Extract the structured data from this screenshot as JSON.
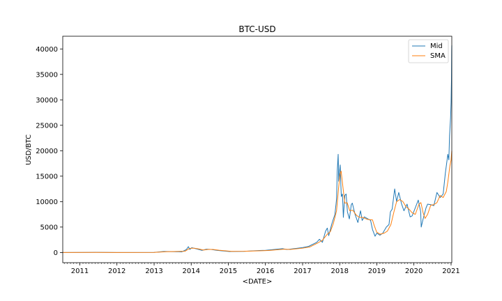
{
  "chart_data": {
    "type": "line",
    "title": "BTC-USD",
    "xlabel": "<DATE>",
    "ylabel": "USD/BTC",
    "xlim": [
      "2010-07-17",
      "2021-01-08"
    ],
    "ylim": [
      -2000,
      42500
    ],
    "xticks": [
      {
        "date": "2011-01-01",
        "label": "2011"
      },
      {
        "date": "2012-01-01",
        "label": "2012"
      },
      {
        "date": "2013-01-01",
        "label": "2013"
      },
      {
        "date": "2014-01-01",
        "label": "2014"
      },
      {
        "date": "2015-01-01",
        "label": "2015"
      },
      {
        "date": "2016-01-01",
        "label": "2016"
      },
      {
        "date": "2017-01-01",
        "label": "2017"
      },
      {
        "date": "2018-01-01",
        "label": "2018"
      },
      {
        "date": "2019-01-01",
        "label": "2019"
      },
      {
        "date": "2020-01-01",
        "label": "2020"
      },
      {
        "date": "2021-01-01",
        "label": "2021"
      }
    ],
    "yticks": [
      0,
      5000,
      10000,
      15000,
      20000,
      25000,
      30000,
      35000,
      40000
    ],
    "legend": {
      "position": "top-right"
    },
    "grid": false,
    "series": [
      {
        "name": "Mid",
        "color": "#1f77b4",
        "points": [
          [
            "2010-07-17",
            0
          ],
          [
            "2011-06-08",
            30
          ],
          [
            "2012-01-01",
            5
          ],
          [
            "2012-12-31",
            13
          ],
          [
            "2013-04-09",
            200
          ],
          [
            "2013-10-01",
            130
          ],
          [
            "2013-11-15",
            600
          ],
          [
            "2013-12-04",
            1150
          ],
          [
            "2013-12-18",
            600
          ],
          [
            "2014-01-06",
            950
          ],
          [
            "2014-02-01",
            820
          ],
          [
            "2014-03-15",
            600
          ],
          [
            "2014-04-15",
            420
          ],
          [
            "2014-06-01",
            650
          ],
          [
            "2014-07-15",
            600
          ],
          [
            "2014-09-15",
            420
          ],
          [
            "2015-01-14",
            190
          ],
          [
            "2015-06-01",
            230
          ],
          [
            "2015-11-04",
            400
          ],
          [
            "2016-01-01",
            430
          ],
          [
            "2016-06-17",
            750
          ],
          [
            "2016-08-01",
            580
          ],
          [
            "2016-12-31",
            960
          ],
          [
            "2017-03-01",
            1200
          ],
          [
            "2017-05-20",
            2000
          ],
          [
            "2017-06-15",
            2600
          ],
          [
            "2017-07-15",
            2000
          ],
          [
            "2017-08-15",
            4200
          ],
          [
            "2017-09-01",
            4800
          ],
          [
            "2017-09-15",
            3300
          ],
          [
            "2017-10-15",
            5600
          ],
          [
            "2017-11-15",
            7500
          ],
          [
            "2017-12-01",
            10500
          ],
          [
            "2017-12-08",
            16000
          ],
          [
            "2017-12-17",
            19300
          ],
          [
            "2017-12-22",
            14000
          ],
          [
            "2017-12-28",
            15500
          ],
          [
            "2018-01-06",
            17200
          ],
          [
            "2018-01-12",
            13500
          ],
          [
            "2018-01-17",
            11000
          ],
          [
            "2018-01-28",
            11500
          ],
          [
            "2018-02-06",
            6900
          ],
          [
            "2018-02-20",
            11200
          ],
          [
            "2018-03-05",
            11500
          ],
          [
            "2018-03-18",
            8000
          ],
          [
            "2018-04-06",
            6600
          ],
          [
            "2018-04-25",
            9400
          ],
          [
            "2018-05-05",
            9700
          ],
          [
            "2018-06-01",
            7500
          ],
          [
            "2018-06-29",
            5900
          ],
          [
            "2018-07-25",
            8200
          ],
          [
            "2018-08-10",
            6300
          ],
          [
            "2018-09-01",
            7000
          ],
          [
            "2018-10-15",
            6500
          ],
          [
            "2018-11-01",
            6300
          ],
          [
            "2018-11-20",
            4500
          ],
          [
            "2018-12-15",
            3200
          ],
          [
            "2019-01-01",
            3800
          ],
          [
            "2019-02-01",
            3400
          ],
          [
            "2019-03-01",
            3800
          ],
          [
            "2019-04-05",
            5000
          ],
          [
            "2019-05-01",
            5500
          ],
          [
            "2019-05-15",
            8000
          ],
          [
            "2019-06-01",
            8500
          ],
          [
            "2019-06-26",
            12500
          ],
          [
            "2019-07-15",
            10000
          ],
          [
            "2019-08-05",
            11800
          ],
          [
            "2019-09-01",
            9600
          ],
          [
            "2019-09-25",
            8200
          ],
          [
            "2019-10-26",
            9500
          ],
          [
            "2019-11-25",
            7000
          ],
          [
            "2019-12-15",
            7200
          ],
          [
            "2020-01-15",
            8800
          ],
          [
            "2020-02-13",
            10300
          ],
          [
            "2020-03-08",
            8000
          ],
          [
            "2020-03-13",
            5000
          ],
          [
            "2020-04-01",
            6600
          ],
          [
            "2020-04-30",
            8800
          ],
          [
            "2020-05-15",
            9500
          ],
          [
            "2020-06-15",
            9400
          ],
          [
            "2020-07-15",
            9200
          ],
          [
            "2020-08-15",
            11800
          ],
          [
            "2020-09-15",
            10800
          ],
          [
            "2020-10-15",
            11500
          ],
          [
            "2020-11-05",
            15500
          ],
          [
            "2020-11-30",
            19300
          ],
          [
            "2020-12-10",
            18200
          ],
          [
            "2020-12-17",
            23000
          ],
          [
            "2020-12-27",
            26500
          ],
          [
            "2021-01-01",
            29500
          ],
          [
            "2021-01-03",
            32000
          ],
          [
            "2021-01-05",
            34000
          ],
          [
            "2021-01-07",
            39500
          ],
          [
            "2021-01-08",
            40700
          ]
        ]
      },
      {
        "name": "SMA",
        "color": "#ff7f0e",
        "points": [
          [
            "2010-07-17",
            0
          ],
          [
            "2011-06-20",
            25
          ],
          [
            "2012-01-01",
            6
          ],
          [
            "2012-12-31",
            13
          ],
          [
            "2013-05-01",
            160
          ],
          [
            "2013-11-01",
            250
          ],
          [
            "2013-12-10",
            750
          ],
          [
            "2014-01-01",
            850
          ],
          [
            "2014-02-01",
            850
          ],
          [
            "2014-03-15",
            700
          ],
          [
            "2014-05-01",
            480
          ],
          [
            "2014-06-15",
            600
          ],
          [
            "2014-08-01",
            600
          ],
          [
            "2014-10-01",
            440
          ],
          [
            "2015-02-01",
            230
          ],
          [
            "2015-06-01",
            240
          ],
          [
            "2015-11-25",
            350
          ],
          [
            "2016-02-01",
            400
          ],
          [
            "2016-07-01",
            650
          ],
          [
            "2016-09-01",
            600
          ],
          [
            "2017-01-01",
            850
          ],
          [
            "2017-03-15",
            1100
          ],
          [
            "2017-06-01",
            1900
          ],
          [
            "2017-07-15",
            2400
          ],
          [
            "2017-09-01",
            3600
          ],
          [
            "2017-10-01",
            4100
          ],
          [
            "2017-11-01",
            5800
          ],
          [
            "2017-12-01",
            8200
          ],
          [
            "2017-12-20",
            12500
          ],
          [
            "2018-01-05",
            15500
          ],
          [
            "2018-01-15",
            16000
          ],
          [
            "2018-02-01",
            13000
          ],
          [
            "2018-02-20",
            9700
          ],
          [
            "2018-03-15",
            9800
          ],
          [
            "2018-04-10",
            8200
          ],
          [
            "2018-05-10",
            8300
          ],
          [
            "2018-06-15",
            7300
          ],
          [
            "2018-07-15",
            6900
          ],
          [
            "2018-08-15",
            6900
          ],
          [
            "2018-10-01",
            6500
          ],
          [
            "2018-11-20",
            6400
          ],
          [
            "2018-12-05",
            5400
          ],
          [
            "2018-12-31",
            4000
          ],
          [
            "2019-02-01",
            3600
          ],
          [
            "2019-03-15",
            3800
          ],
          [
            "2019-04-15",
            4200
          ],
          [
            "2019-05-20",
            5500
          ],
          [
            "2019-06-20",
            8100
          ],
          [
            "2019-07-15",
            10000
          ],
          [
            "2019-08-15",
            10400
          ],
          [
            "2019-09-15",
            10000
          ],
          [
            "2019-10-15",
            9000
          ],
          [
            "2019-11-15",
            8500
          ],
          [
            "2019-12-15",
            7800
          ],
          [
            "2020-01-15",
            7500
          ],
          [
            "2020-02-20",
            9500
          ],
          [
            "2020-03-10",
            9800
          ],
          [
            "2020-04-01",
            7800
          ],
          [
            "2020-04-20",
            6700
          ],
          [
            "2020-05-15",
            7500
          ],
          [
            "2020-06-15",
            9300
          ],
          [
            "2020-07-15",
            9400
          ],
          [
            "2020-08-15",
            9800
          ],
          [
            "2020-09-15",
            11200
          ],
          [
            "2020-10-15",
            10800
          ],
          [
            "2020-11-15",
            12000
          ],
          [
            "2020-12-01",
            14000
          ],
          [
            "2020-12-20",
            17000
          ],
          [
            "2021-01-01",
            18200
          ],
          [
            "2021-01-08",
            20000
          ]
        ]
      }
    ]
  }
}
